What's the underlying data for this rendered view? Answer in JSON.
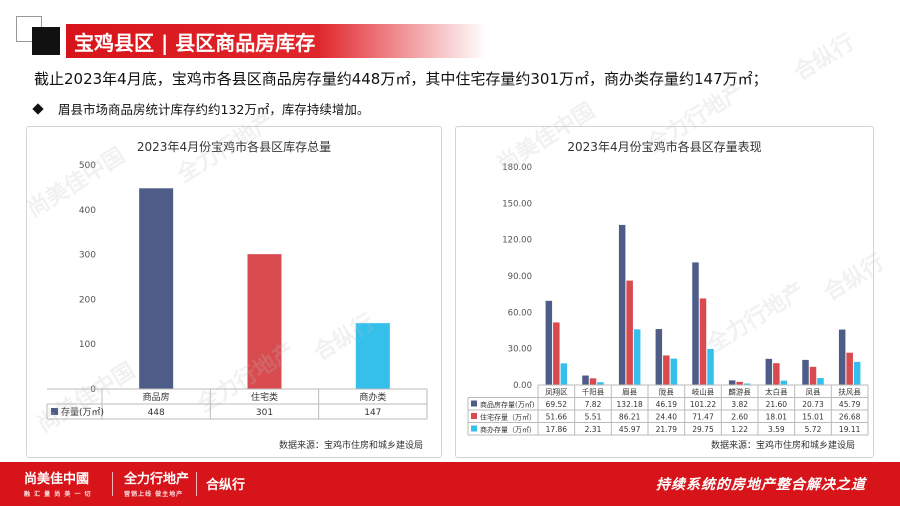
{
  "header": {
    "title": "宝鸡县区 | 县区商品房库存",
    "lead": "截止2023年4月底，宝鸡市各县区商品房存量约448万㎡，其中住宅存量约301万㎡，商办类存量约147万㎡；",
    "bullet": "眉县市场商品房统计库存约约132万㎡，库存持续增加。"
  },
  "colors": {
    "brand": "#d7141a",
    "navy": "#4e5c88",
    "red": "#d94a4f",
    "cyan": "#35c0ec",
    "bar_red": "#d84b4f"
  },
  "icons": [
    "diamond-bullet-icon",
    "square-frame-icon"
  ],
  "chart_data": [
    {
      "type": "bar",
      "title": "2023年4月份宝鸡市各县区库存总量",
      "categories": [
        "商品房",
        "住宅类",
        "商办类"
      ],
      "series": [
        {
          "name": "存量(万㎡)",
          "values": [
            448,
            301,
            147
          ]
        }
      ],
      "value_labels": [
        "448",
        "301",
        "147"
      ],
      "ylim": [
        0,
        500
      ],
      "yticks": [
        "0",
        "100",
        "200",
        "300",
        "400",
        "500"
      ],
      "grid": false,
      "source": "数据来源：宝鸡市住房和城乡建设局"
    },
    {
      "type": "bar",
      "title": "2023年4月份宝鸡市各县区存量表现",
      "categories": [
        "凤翔区",
        "千阳县",
        "眉县",
        "陇县",
        "岐山县",
        "麟游县",
        "太白县",
        "凤县",
        "扶风县"
      ],
      "series": [
        {
          "name": "商品房存量(万㎡)",
          "values": [
            69.52,
            7.82,
            132.18,
            46.19,
            101.22,
            3.82,
            21.6,
            20.73,
            45.79
          ],
          "labels": [
            "69.52",
            "7.82",
            "132.18",
            "46.19",
            "101.22",
            "3.82",
            "21.60",
            "20.73",
            "45.79"
          ]
        },
        {
          "name": "住宅存量（万㎡）",
          "values": [
            51.66,
            5.51,
            86.21,
            24.4,
            71.47,
            2.6,
            18.01,
            15.01,
            26.68
          ],
          "labels": [
            "51.66",
            "5.51",
            "86.21",
            "24.40",
            "71.47",
            "2.60",
            "18.01",
            "15.01",
            "26.68"
          ]
        },
        {
          "name": "商办存量（万㎡）",
          "values": [
            17.86,
            2.31,
            45.97,
            21.79,
            29.75,
            1.22,
            3.59,
            5.72,
            19.11
          ],
          "labels": [
            "17.86",
            "2.31",
            "45.97",
            "21.79",
            "29.75",
            "1.22",
            "3.59",
            "5.72",
            "19.11"
          ]
        }
      ],
      "ylim": [
        0,
        180
      ],
      "yticks": [
        "0.00",
        "30.00",
        "60.00",
        "90.00",
        "120.00",
        "150.00",
        "180.00"
      ],
      "grid": false,
      "source": "数据来源：宝鸡市住房和城乡建设局"
    }
  ],
  "watermarks": [
    "尚美佳中国",
    "全力行地产",
    "合纵行"
  ],
  "footer": {
    "logo1": "尚美佳中國",
    "logo1_sub": "融 汇 量 尚 美 一 切",
    "logo2": "全力行地产",
    "logo2_sub": "营销上线 做主地产",
    "logo3": "合纵行",
    "slogan": "持续系统的房地产整合解决之道"
  }
}
